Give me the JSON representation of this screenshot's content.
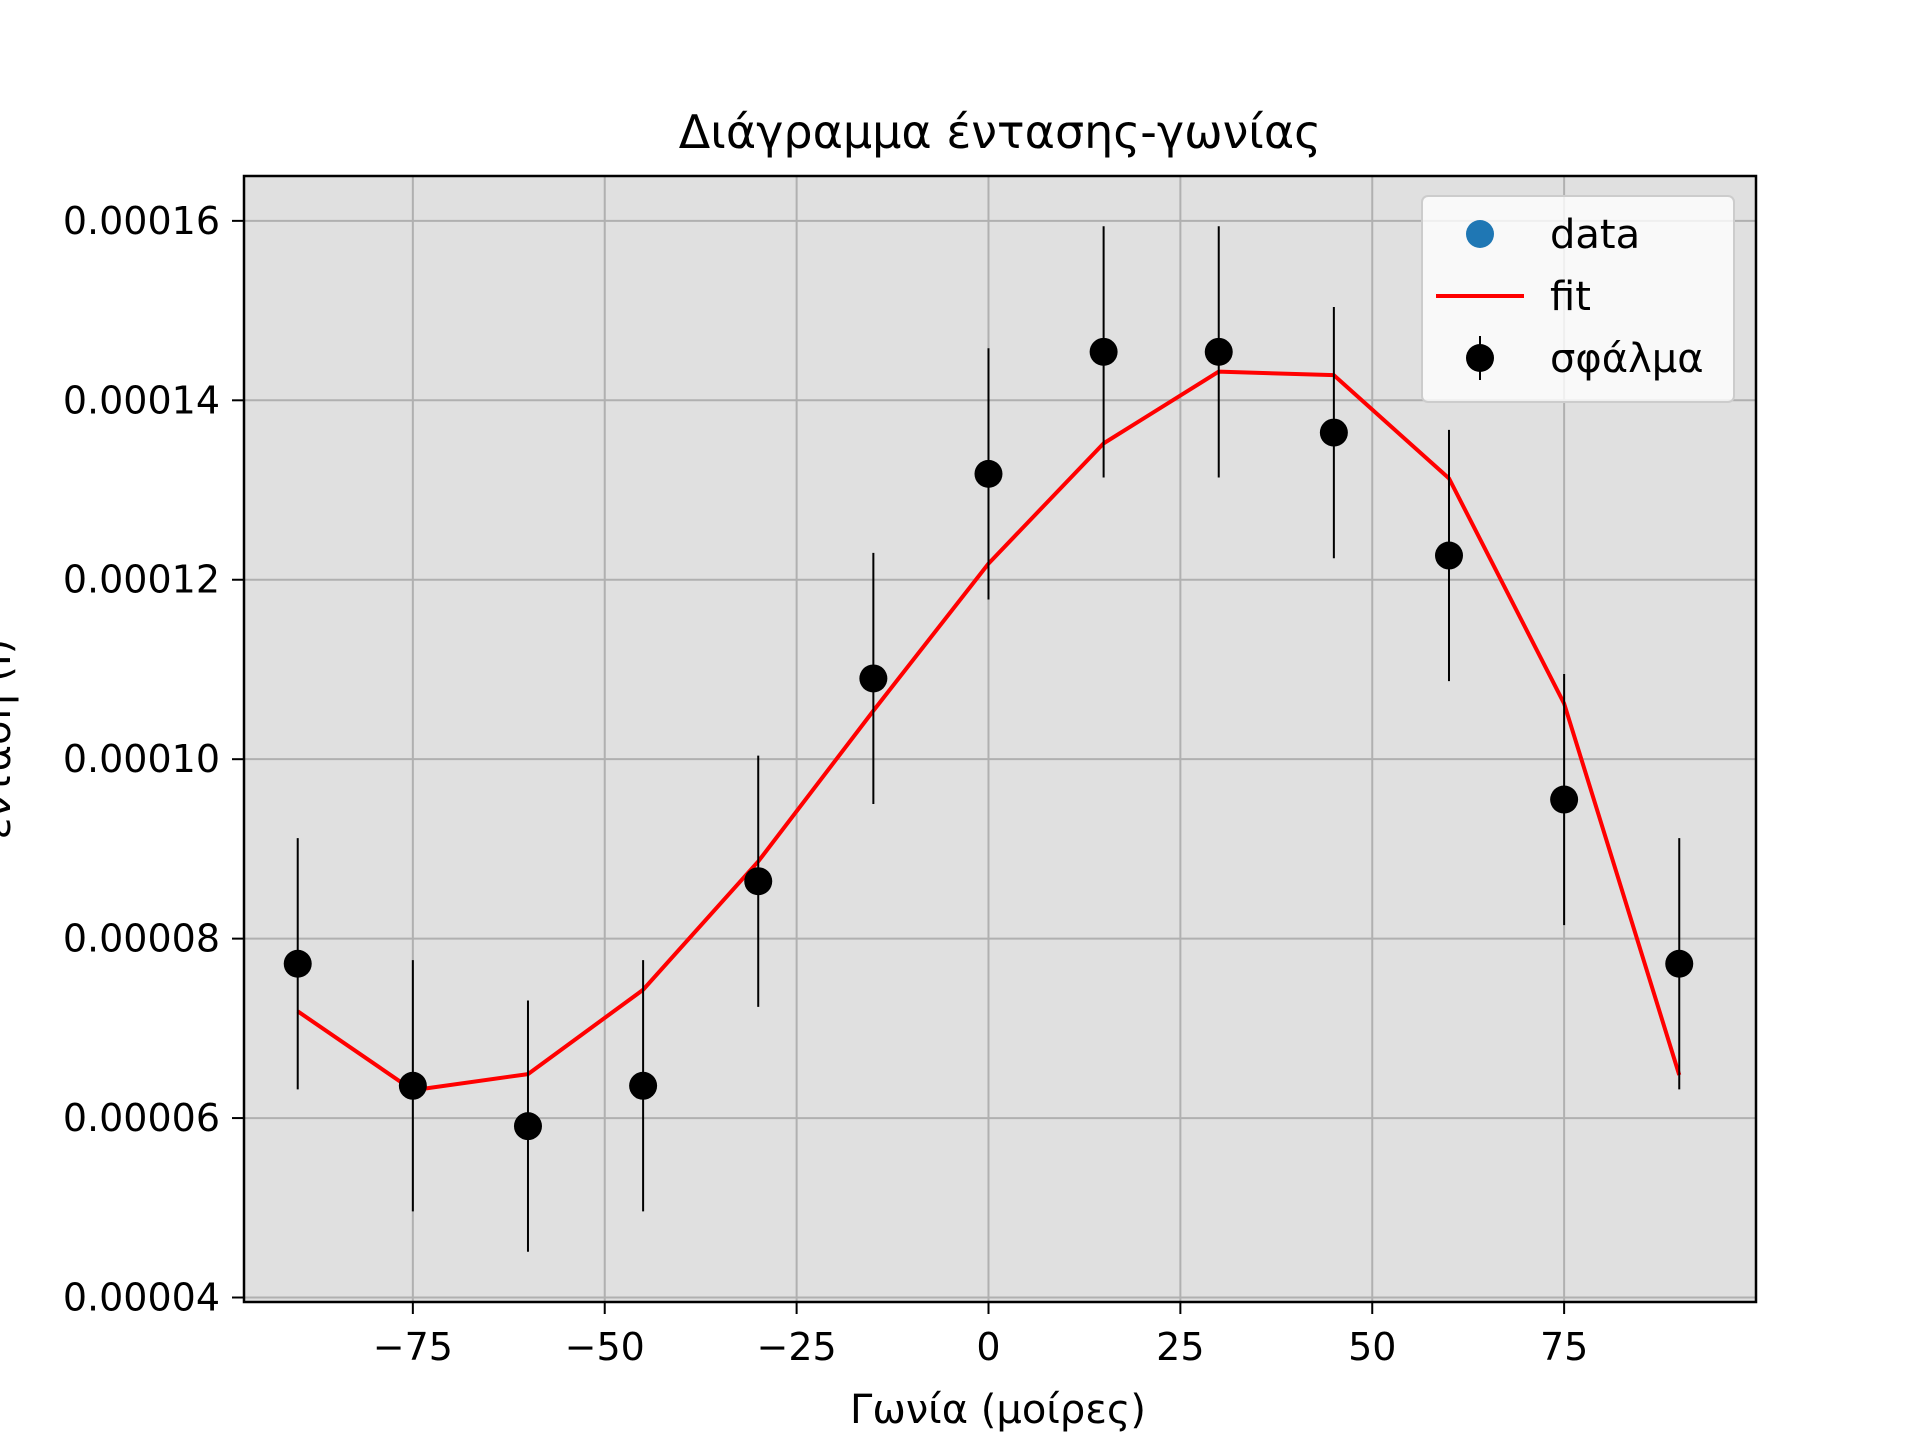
{
  "chart_data": {
    "type": "scatter",
    "title": "Διάγραμμα έντασης-γωνίας",
    "xlabel": "Γωνία (μοίρες)",
    "ylabel": "ένταση (I)",
    "xlim": [
      -97,
      100
    ],
    "ylim": [
      3.95e-05,
      0.000165
    ],
    "xticks": [
      -75,
      -50,
      -25,
      0,
      25,
      50,
      75
    ],
    "xtick_labels": [
      "−75",
      "−50",
      "−25",
      "0",
      "25",
      "50",
      "75"
    ],
    "yticks": [
      4e-05,
      6e-05,
      8e-05,
      0.0001,
      0.00012,
      0.00014,
      0.00016
    ],
    "ytick_labels": [
      "0.00004",
      "0.00006",
      "0.00008",
      "0.00010",
      "0.00012",
      "0.00014",
      "0.00016"
    ],
    "grid": true,
    "background": "#e0e0e0",
    "legend": {
      "placement": "top-right",
      "entries": [
        {
          "label": "data",
          "kind": "marker",
          "color": "#1f77b4"
        },
        {
          "label": "fit",
          "kind": "line",
          "color": "#ff0000"
        },
        {
          "label": "σφάλμα",
          "kind": "errorbar",
          "color": "#000000"
        }
      ]
    },
    "series": [
      {
        "name": "σφάλμα",
        "kind": "errorbar",
        "color": "#000000",
        "x": [
          -90,
          -75,
          -60,
          -45,
          -30,
          -15,
          0,
          15,
          30,
          45,
          60,
          75,
          90
        ],
        "y": [
          7.72e-05,
          6.36e-05,
          5.91e-05,
          6.36e-05,
          8.64e-05,
          0.000109,
          0.0001318,
          0.0001454,
          0.0001454,
          0.0001364,
          0.0001227,
          9.55e-05,
          7.72e-05
        ],
        "yerr": [
          1.4e-05,
          1.4e-05,
          1.4e-05,
          1.4e-05,
          1.4e-05,
          1.4e-05,
          1.4e-05,
          1.4e-05,
          1.4e-05,
          1.4e-05,
          1.4e-05,
          1.4e-05,
          1.4e-05
        ]
      },
      {
        "name": "fit",
        "kind": "line",
        "color": "#ff0000",
        "x": [
          -90,
          -75,
          -60,
          -45,
          -30,
          -15,
          0,
          15,
          30,
          45,
          60,
          75,
          90
        ],
        "y": [
          7.19e-05,
          6.31e-05,
          6.49e-05,
          7.43e-05,
          8.86e-05,
          0.0001054,
          0.0001218,
          0.0001352,
          0.0001432,
          0.0001428,
          0.0001313,
          0.0001062,
          6.48e-05
        ]
      }
    ]
  }
}
